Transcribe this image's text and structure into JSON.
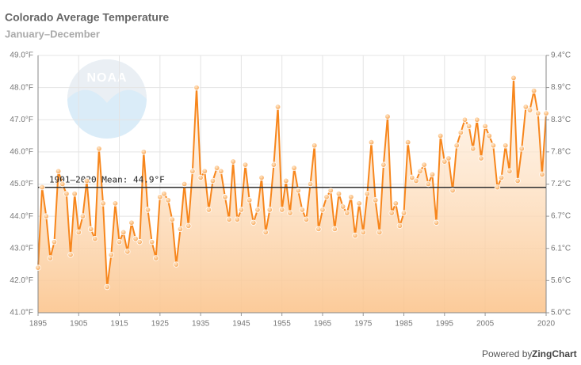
{
  "chart_data": {
    "type": "line",
    "title": "Colorado Average Temperature",
    "subtitle": "January–December",
    "logo_text": "NOAA",
    "credit": {
      "prefix": "Powered by",
      "brand": "ZingChart"
    },
    "x": [
      1895,
      1896,
      1897,
      1898,
      1899,
      1900,
      1901,
      1902,
      1903,
      1904,
      1905,
      1906,
      1907,
      1908,
      1909,
      1910,
      1911,
      1912,
      1913,
      1914,
      1915,
      1916,
      1917,
      1918,
      1919,
      1920,
      1921,
      1922,
      1923,
      1924,
      1925,
      1926,
      1927,
      1928,
      1929,
      1930,
      1931,
      1932,
      1933,
      1934,
      1935,
      1936,
      1937,
      1938,
      1939,
      1940,
      1941,
      1942,
      1943,
      1944,
      1945,
      1946,
      1947,
      1948,
      1949,
      1950,
      1951,
      1952,
      1953,
      1954,
      1955,
      1956,
      1957,
      1958,
      1959,
      1960,
      1961,
      1962,
      1963,
      1964,
      1965,
      1966,
      1967,
      1968,
      1969,
      1970,
      1971,
      1972,
      1973,
      1974,
      1975,
      1976,
      1977,
      1978,
      1979,
      1980,
      1981,
      1982,
      1983,
      1984,
      1985,
      1986,
      1987,
      1988,
      1989,
      1990,
      1991,
      1992,
      1993,
      1994,
      1995,
      1996,
      1997,
      1998,
      1999,
      2000,
      2001,
      2002,
      2003,
      2004,
      2005,
      2006,
      2007,
      2008,
      2009,
      2010,
      2011,
      2012,
      2013,
      2014,
      2015,
      2016,
      2017,
      2018,
      2019,
      2020
    ],
    "series": [
      {
        "name": "Colorado",
        "color": "#f7861c",
        "values": [
          42.4,
          44.9,
          44.0,
          42.7,
          43.2,
          45.4,
          45.0,
          44.7,
          42.8,
          44.7,
          43.5,
          44.0,
          45.1,
          43.6,
          43.3,
          46.1,
          44.4,
          41.8,
          42.8,
          44.4,
          43.2,
          43.5,
          42.9,
          43.8,
          43.3,
          43.2,
          46.0,
          44.2,
          43.2,
          42.7,
          44.6,
          44.7,
          44.5,
          43.9,
          42.5,
          43.6,
          45.0,
          43.7,
          45.4,
          48.0,
          45.2,
          45.4,
          44.2,
          45.1,
          45.5,
          45.4,
          44.6,
          43.9,
          45.7,
          43.9,
          44.2,
          45.6,
          44.5,
          43.8,
          44.2,
          45.2,
          43.5,
          44.2,
          45.6,
          47.4,
          44.2,
          45.1,
          44.1,
          45.5,
          44.8,
          44.2,
          43.9,
          45.0,
          46.2,
          43.6,
          44.2,
          44.6,
          44.8,
          43.6,
          44.7,
          44.3,
          44.1,
          44.6,
          43.4,
          44.4,
          43.5,
          44.7,
          46.3,
          44.5,
          43.5,
          45.6,
          47.1,
          44.1,
          44.4,
          43.7,
          44.1,
          46.3,
          45.2,
          45.1,
          45.4,
          45.6,
          45.0,
          45.3,
          43.8,
          46.5,
          45.7,
          45.8,
          44.8,
          46.2,
          46.6,
          47.0,
          46.8,
          46.1,
          47.0,
          45.8,
          46.8,
          46.5,
          46.2,
          44.9,
          45.2,
          46.2,
          45.4,
          48.3,
          45.1,
          46.1,
          47.4,
          47.3,
          47.9,
          47.2,
          45.3,
          47.2
        ]
      }
    ],
    "mean": {
      "label": "1901–2020 Mean: 44.9°F",
      "value": 44.9
    },
    "xlim": [
      1895,
      2020
    ],
    "xticks": [
      1895,
      1905,
      1915,
      1925,
      1935,
      1945,
      1955,
      1965,
      1975,
      1985,
      1995,
      2005,
      2020
    ],
    "ylim": [
      41,
      49
    ],
    "yticks": [
      {
        "value": 41,
        "label": "41.0°F"
      },
      {
        "value": 42,
        "label": "42.0°F"
      },
      {
        "value": 43,
        "label": "43.0°F"
      },
      {
        "value": 44,
        "label": "44.0°F"
      },
      {
        "value": 45,
        "label": "45.0°F"
      },
      {
        "value": 46,
        "label": "46.0°F"
      },
      {
        "value": 47,
        "label": "47.0°F"
      },
      {
        "value": 48,
        "label": "48.0°F"
      },
      {
        "value": 49,
        "label": "49.0°F"
      }
    ],
    "y2lim": [
      5.0,
      9.444
    ],
    "y2ticks": [
      {
        "value": 5.0,
        "label": "5.0°C"
      },
      {
        "value": 5.556,
        "label": "5.6°C"
      },
      {
        "value": 6.111,
        "label": "6.1°C"
      },
      {
        "value": 6.667,
        "label": "6.7°C"
      },
      {
        "value": 7.222,
        "label": "7.2°C"
      },
      {
        "value": 7.778,
        "label": "7.8°C"
      },
      {
        "value": 8.333,
        "label": "8.3°C"
      },
      {
        "value": 8.889,
        "label": "8.9°C"
      },
      {
        "value": 9.444,
        "label": "9.4°C"
      }
    ],
    "grid": true
  }
}
